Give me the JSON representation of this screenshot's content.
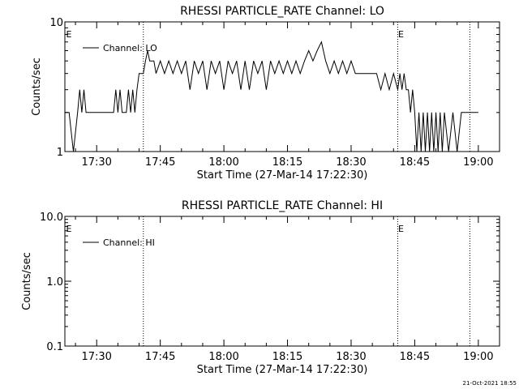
{
  "footer": {
    "timestamp": "21-Oct-2021 18:55"
  },
  "chart_data": [
    {
      "type": "line",
      "title": "RHESSI PARTICLE_RATE Channel: LO",
      "xlabel": "Start Time (27-Mar-14 17:22:30)",
      "ylabel": "Counts/sec",
      "yscale": "log",
      "ylim": [
        1,
        10
      ],
      "xlim": [
        "17:22:30",
        "19:05:00"
      ],
      "xticks": [
        "17:30",
        "17:45",
        "18:00",
        "18:15",
        "18:30",
        "18:45",
        "19:00"
      ],
      "yticks": [
        "1",
        "10"
      ],
      "event_lines": [
        "17:41:00",
        "18:41:00",
        "18:58:00"
      ],
      "event_markers": [
        "E",
        "E"
      ],
      "legend": {
        "position": "top-left",
        "label": "Channel: LO"
      },
      "series": [
        {
          "name": "Channel: LO",
          "x": [
            "17:22:30",
            "17:23:30",
            "17:24:30",
            "17:25:30",
            "17:26:00",
            "17:26:30",
            "17:27:00",
            "17:27:30",
            "17:28:00",
            "17:29:00",
            "17:30:00",
            "17:31:00",
            "17:32:00",
            "17:33:00",
            "17:34:00",
            "17:34:30",
            "17:35:00",
            "17:35:30",
            "17:36:00",
            "17:37:00",
            "17:37:30",
            "17:38:00",
            "17:38:30",
            "17:39:00",
            "17:39:30",
            "17:40:00",
            "17:41:00",
            "17:41:30",
            "17:42:00",
            "17:42:30",
            "17:43:00",
            "17:43:30",
            "17:44:00",
            "17:45:00",
            "17:46:00",
            "17:47:00",
            "17:48:00",
            "17:49:00",
            "17:50:00",
            "17:51:00",
            "17:52:00",
            "17:53:00",
            "17:54:00",
            "17:55:00",
            "17:56:00",
            "17:57:00",
            "17:58:00",
            "17:59:00",
            "18:00:00",
            "18:01:00",
            "18:02:00",
            "18:03:00",
            "18:04:00",
            "18:05:00",
            "18:06:00",
            "18:07:00",
            "18:08:00",
            "18:09:00",
            "18:10:00",
            "18:11:00",
            "18:12:00",
            "18:13:00",
            "18:14:00",
            "18:15:00",
            "18:16:00",
            "18:17:00",
            "18:18:00",
            "18:19:00",
            "18:20:00",
            "18:21:00",
            "18:22:00",
            "18:23:00",
            "18:24:00",
            "18:25:00",
            "18:26:00",
            "18:27:00",
            "18:28:00",
            "18:29:00",
            "18:30:00",
            "18:31:00",
            "18:32:00",
            "18:33:00",
            "18:34:00",
            "18:35:00",
            "18:36:00",
            "18:37:00",
            "18:38:00",
            "18:39:00",
            "18:40:00",
            "18:41:00",
            "18:41:30",
            "18:42:00",
            "18:42:30",
            "18:43:00",
            "18:43:30",
            "18:44:00",
            "18:44:30",
            "18:45:00",
            "18:45:30",
            "18:46:00",
            "18:46:30",
            "18:47:00",
            "18:47:30",
            "18:48:00",
            "18:48:30",
            "18:49:00",
            "18:49:30",
            "18:50:00",
            "18:50:30",
            "18:51:00",
            "18:51:30",
            "18:52:00",
            "18:53:00",
            "18:54:00",
            "18:55:00",
            "18:56:00",
            "18:57:00",
            "18:58:00",
            "19:00:00"
          ],
          "y": [
            2,
            2,
            1,
            2,
            3,
            2,
            3,
            2,
            2,
            2,
            2,
            2,
            2,
            2,
            2,
            3,
            2,
            3,
            2,
            2,
            3,
            2,
            3,
            2,
            3,
            4,
            4,
            5,
            6,
            5,
            5,
            5,
            4,
            5,
            4,
            5,
            4,
            5,
            4,
            5,
            3,
            5,
            4,
            5,
            3,
            5,
            4,
            5,
            3,
            5,
            4,
            5,
            3,
            5,
            3,
            5,
            4,
            5,
            3,
            5,
            4,
            5,
            4,
            5,
            4,
            5,
            4,
            5,
            6,
            5,
            6,
            7,
            5,
            4,
            5,
            4,
            5,
            4,
            5,
            4,
            4,
            4,
            4,
            4,
            4,
            3,
            4,
            3,
            4,
            3,
            4,
            3,
            4,
            3,
            3,
            2,
            3,
            2,
            1,
            2,
            1,
            2,
            1,
            2,
            1,
            2,
            1,
            2,
            1,
            2,
            1,
            2,
            1,
            2,
            1,
            2,
            2,
            2,
            2
          ]
        }
      ]
    },
    {
      "type": "line",
      "title": "RHESSI PARTICLE_RATE Channel: HI",
      "xlabel": "Start Time (27-Mar-14 17:22:30)",
      "ylabel": "Counts/sec",
      "yscale": "log",
      "ylim": [
        0.1,
        10.0
      ],
      "xlim": [
        "17:22:30",
        "19:05:00"
      ],
      "xticks": [
        "17:30",
        "17:45",
        "18:00",
        "18:15",
        "18:30",
        "18:45",
        "19:00"
      ],
      "yticks": [
        "0.1",
        "1.0",
        "10.0"
      ],
      "event_lines": [
        "17:41:00",
        "18:41:00",
        "18:58:00"
      ],
      "event_markers": [
        "E",
        "E"
      ],
      "legend": {
        "position": "top-left",
        "label": "Channel: HI"
      },
      "series": [
        {
          "name": "Channel: HI",
          "x": [],
          "y": []
        }
      ]
    }
  ]
}
